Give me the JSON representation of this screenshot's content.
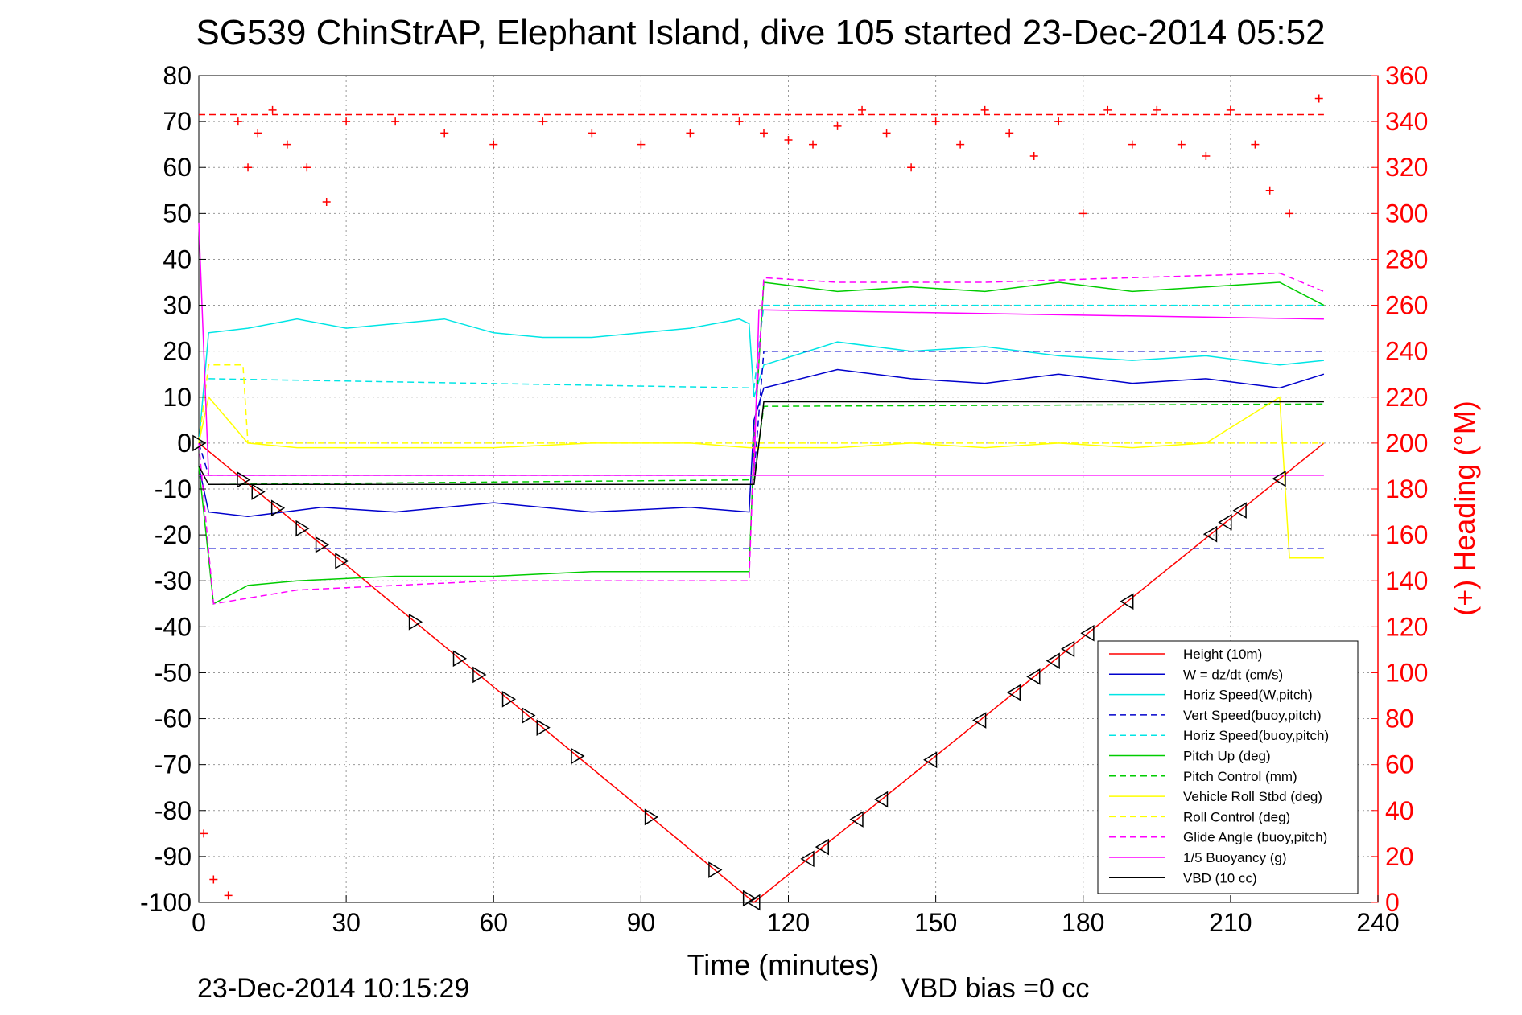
{
  "title": "SG539 ChinStrAP, Elephant Island, dive 105 started 23-Dec-2014 05:52",
  "footer": {
    "timestamp": "23-Dec-2014 10:15:29",
    "vbd_bias": "VBD bias =0 cc"
  },
  "chart_data": {
    "type": "line",
    "title": "SG539 ChinStrAP, Elephant Island, dive 105 started 23-Dec-2014 05:52",
    "xlabel": "Time (minutes)",
    "ylabel": "",
    "y2label": "(+) Heading (°M)",
    "xlim": [
      0,
      240
    ],
    "ylim": [
      -100,
      80
    ],
    "y2lim": [
      0,
      360
    ],
    "xticks": [
      0,
      30,
      60,
      90,
      120,
      150,
      180,
      210,
      240
    ],
    "yticks": [
      -100,
      -90,
      -80,
      -70,
      -60,
      -50,
      -40,
      -30,
      -20,
      -10,
      0,
      10,
      20,
      30,
      40,
      50,
      60,
      70,
      80
    ],
    "y2ticks": [
      0,
      20,
      40,
      60,
      80,
      100,
      120,
      140,
      160,
      180,
      200,
      220,
      240,
      260,
      280,
      300,
      320,
      340,
      360
    ],
    "grid": true,
    "legend_position": "bottom-right",
    "series": [
      {
        "name": "Height (10m)",
        "color": "#ff0000",
        "style": "solid",
        "x": [
          0,
          113,
          229
        ],
        "y": [
          0,
          -100,
          0
        ]
      },
      {
        "name": "W = dz/dt (cm/s)",
        "color": "#0000cc",
        "style": "solid",
        "x": [
          0,
          2,
          10,
          25,
          40,
          60,
          80,
          100,
          112,
          113,
          115,
          130,
          145,
          160,
          175,
          190,
          205,
          220,
          229
        ],
        "y": [
          -5,
          -15,
          -16,
          -14,
          -15,
          -13,
          -15,
          -14,
          -15,
          5,
          12,
          16,
          14,
          13,
          15,
          13,
          14,
          12,
          15
        ]
      },
      {
        "name": "Horiz Speed(W,pitch)",
        "color": "#00e5e5",
        "style": "solid",
        "x": [
          0,
          2,
          10,
          20,
          30,
          40,
          50,
          60,
          70,
          80,
          90,
          100,
          110,
          112,
          113,
          115,
          130,
          145,
          160,
          175,
          190,
          205,
          220,
          229
        ],
        "y": [
          0,
          24,
          25,
          27,
          25,
          26,
          27,
          24,
          23,
          23,
          24,
          25,
          27,
          26,
          10,
          17,
          22,
          20,
          21,
          19,
          18,
          19,
          17,
          18
        ]
      },
      {
        "name": "Vert Speed(buoy,pitch)",
        "color": "#0000cc",
        "style": "dashed",
        "x": [
          0,
          2,
          113,
          115,
          229
        ],
        "y": [
          0,
          -7,
          -7,
          20,
          20
        ]
      },
      {
        "name": "Horiz Speed(buoy,pitch)",
        "color": "#00e5e5",
        "style": "dashed",
        "x": [
          2,
          113,
          115,
          229
        ],
        "y": [
          14,
          12,
          30,
          30
        ]
      },
      {
        "name": "Pitch Up (deg)",
        "color": "#00cc00",
        "style": "solid",
        "x": [
          0,
          3,
          10,
          20,
          40,
          60,
          80,
          100,
          112,
          113,
          115,
          130,
          145,
          160,
          175,
          190,
          205,
          220,
          229
        ],
        "y": [
          -5,
          -35,
          -31,
          -30,
          -29,
          -29,
          -28,
          -28,
          -28,
          0,
          35,
          33,
          34,
          33,
          35,
          33,
          34,
          35,
          30
        ]
      },
      {
        "name": "Pitch Control (mm)",
        "color": "#00cc00",
        "style": "dashed",
        "x": [
          2,
          113,
          115,
          229
        ],
        "y": [
          -9,
          -8,
          8,
          8.5
        ]
      },
      {
        "name": "Vehicle Roll Stbd (deg)",
        "color": "#ffff00",
        "style": "solid",
        "x": [
          0,
          2,
          10,
          20,
          40,
          60,
          80,
          100,
          112,
          115,
          130,
          145,
          160,
          175,
          190,
          205,
          220,
          222,
          229
        ],
        "y": [
          0,
          10,
          0,
          -1,
          -1,
          -1,
          0,
          0,
          -1,
          -1,
          -1,
          0,
          -1,
          0,
          -1,
          0,
          10,
          -25,
          -25
        ]
      },
      {
        "name": "Roll Control (deg)",
        "color": "#ffff00",
        "style": "dashed",
        "x": [
          0,
          2,
          9,
          10,
          229
        ],
        "y": [
          0,
          17,
          17,
          0,
          0
        ]
      },
      {
        "name": "Glide Angle (buoy,pitch)",
        "color": "#ff00ff",
        "style": "dashed",
        "x": [
          0,
          3,
          20,
          60,
          112,
          113,
          115,
          130,
          160,
          190,
          220,
          229
        ],
        "y": [
          0,
          -35,
          -32,
          -30,
          -30,
          0,
          36,
          35,
          35,
          36,
          37,
          33
        ]
      },
      {
        "name": "1/5 Buoyancy (g)",
        "color": "#ff00ff",
        "style": "solid",
        "x": [
          0,
          2,
          113,
          114,
          229
        ],
        "y": [
          48,
          -7,
          -7,
          29,
          27
        ]
      },
      {
        "name": "VBD (10 cc)",
        "color": "#000000",
        "style": "solid",
        "x": [
          0,
          2,
          113,
          115,
          229
        ],
        "y": [
          -5,
          -9,
          -9,
          9,
          9
        ]
      },
      {
        "name": "",
        "color": "#ff0000",
        "style": "markers",
        "axis": "right",
        "x": [
          1,
          3,
          6,
          8,
          10,
          12,
          15,
          18,
          22,
          26,
          30,
          40,
          50,
          60,
          70,
          80,
          90,
          100,
          110,
          115,
          120,
          125,
          130,
          135,
          140,
          145,
          150,
          155,
          160,
          165,
          170,
          175,
          180,
          185,
          190,
          195,
          200,
          205,
          210,
          215,
          218,
          222,
          228
        ],
        "y": [
          30,
          10,
          3,
          340,
          320,
          335,
          345,
          330,
          320,
          305,
          340,
          340,
          335,
          330,
          340,
          335,
          330,
          335,
          340,
          335,
          332,
          330,
          338,
          345,
          335,
          320,
          340,
          330,
          345,
          335,
          325,
          340,
          300,
          345,
          330,
          345,
          330,
          325,
          345,
          330,
          310,
          300,
          350
        ]
      },
      {
        "name": "",
        "color": "#ff0000",
        "style": "dashed",
        "axis": "right",
        "x": [
          0,
          229
        ],
        "y": [
          343,
          343
        ]
      },
      {
        "name": "",
        "color": "#ff00ff",
        "style": "solid",
        "x": [
          0,
          229
        ],
        "y": [
          -7,
          -7
        ]
      },
      {
        "name": "",
        "color": "#0000cc",
        "style": "dashed",
        "x": [
          0,
          229
        ],
        "y": [
          -23,
          -23
        ]
      }
    ],
    "markers": {
      "symbol": "triangle",
      "color": "#000000",
      "down_x": [
        0,
        9,
        12,
        16,
        21,
        25,
        29,
        44,
        53,
        57,
        63,
        67,
        70,
        77,
        92,
        105,
        112
      ],
      "up_x": [
        113,
        124,
        127,
        134,
        139,
        149,
        159,
        166,
        170,
        174,
        177,
        181,
        189,
        206,
        209,
        212,
        220
      ]
    }
  }
}
